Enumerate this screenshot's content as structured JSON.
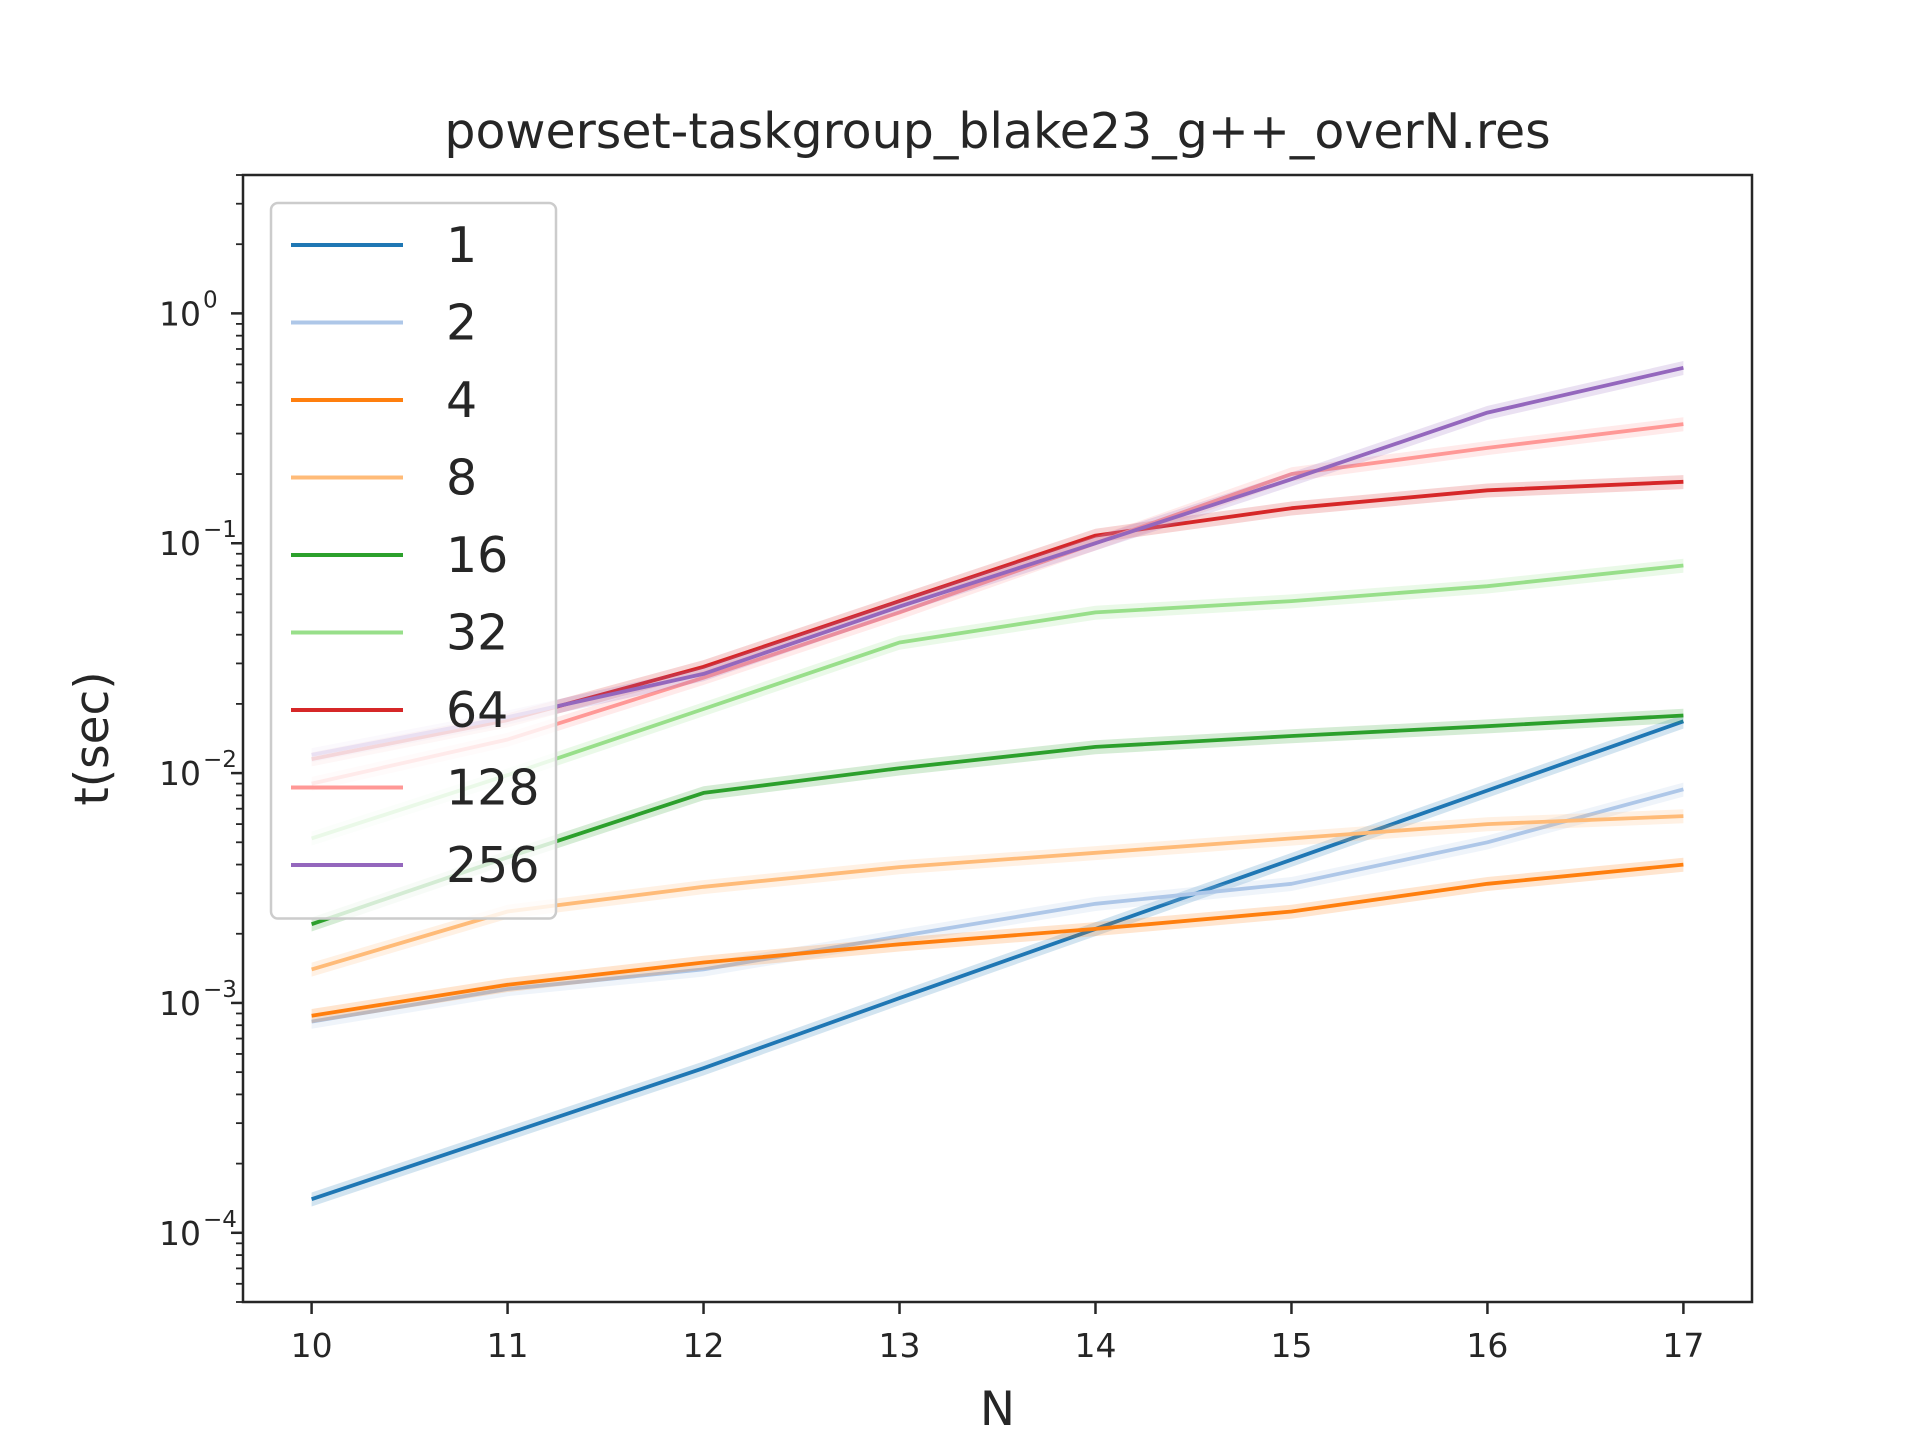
{
  "chart_data": {
    "type": "line",
    "title": "powerset-taskgroup_blake23_g++_overN.res",
    "xlabel": "N",
    "ylabel": "t(sec)",
    "yscale": "log",
    "xlim": [
      9.65,
      17.35
    ],
    "ylim": [
      5e-05,
      4
    ],
    "x": [
      10,
      11,
      12,
      13,
      14,
      15,
      16,
      17
    ],
    "x_tick_labels": [
      "10",
      "11",
      "12",
      "13",
      "14",
      "15",
      "16",
      "17"
    ],
    "y_ticks": [
      {
        "value": 0.0001,
        "base": "10",
        "exp": "−4"
      },
      {
        "value": 0.001,
        "base": "10",
        "exp": "−3"
      },
      {
        "value": 0.01,
        "base": "10",
        "exp": "−2"
      },
      {
        "value": 0.1,
        "base": "10",
        "exp": "−1"
      },
      {
        "value": 1,
        "base": "10",
        "exp": "0"
      }
    ],
    "grid": false,
    "legend_position": "upper-left",
    "series": [
      {
        "name": "1",
        "color": "#1f77b4",
        "values": [
          0.00014,
          0.00027,
          0.00052,
          0.00105,
          0.0021,
          0.0042,
          0.0084,
          0.0168
        ]
      },
      {
        "name": "2",
        "color": "#aec7e8",
        "values": [
          0.00083,
          0.00115,
          0.0014,
          0.00195,
          0.0027,
          0.0033,
          0.005,
          0.0085
        ]
      },
      {
        "name": "4",
        "color": "#ff7f0e",
        "values": [
          0.00088,
          0.0012,
          0.0015,
          0.0018,
          0.0021,
          0.0025,
          0.0033,
          0.004
        ]
      },
      {
        "name": "8",
        "color": "#ffbb78",
        "values": [
          0.0014,
          0.0025,
          0.0032,
          0.0039,
          0.0045,
          0.0052,
          0.006,
          0.0065
        ]
      },
      {
        "name": "16",
        "color": "#2ca02c",
        "values": [
          0.0022,
          0.0043,
          0.0082,
          0.0105,
          0.013,
          0.0145,
          0.016,
          0.0178
        ]
      },
      {
        "name": "32",
        "color": "#98df8a",
        "values": [
          0.0052,
          0.0098,
          0.019,
          0.037,
          0.05,
          0.056,
          0.065,
          0.08
        ]
      },
      {
        "name": "64",
        "color": "#d62728",
        "values": [
          0.0115,
          0.017,
          0.029,
          0.056,
          0.108,
          0.142,
          0.17,
          0.185
        ]
      },
      {
        "name": "128",
        "color": "#ff9896",
        "values": [
          0.009,
          0.014,
          0.026,
          0.05,
          0.1,
          0.2,
          0.26,
          0.33
        ]
      },
      {
        "name": "256",
        "color": "#9467bd",
        "values": [
          0.012,
          0.0175,
          0.027,
          0.053,
          0.1,
          0.19,
          0.37,
          0.58
        ]
      }
    ]
  }
}
